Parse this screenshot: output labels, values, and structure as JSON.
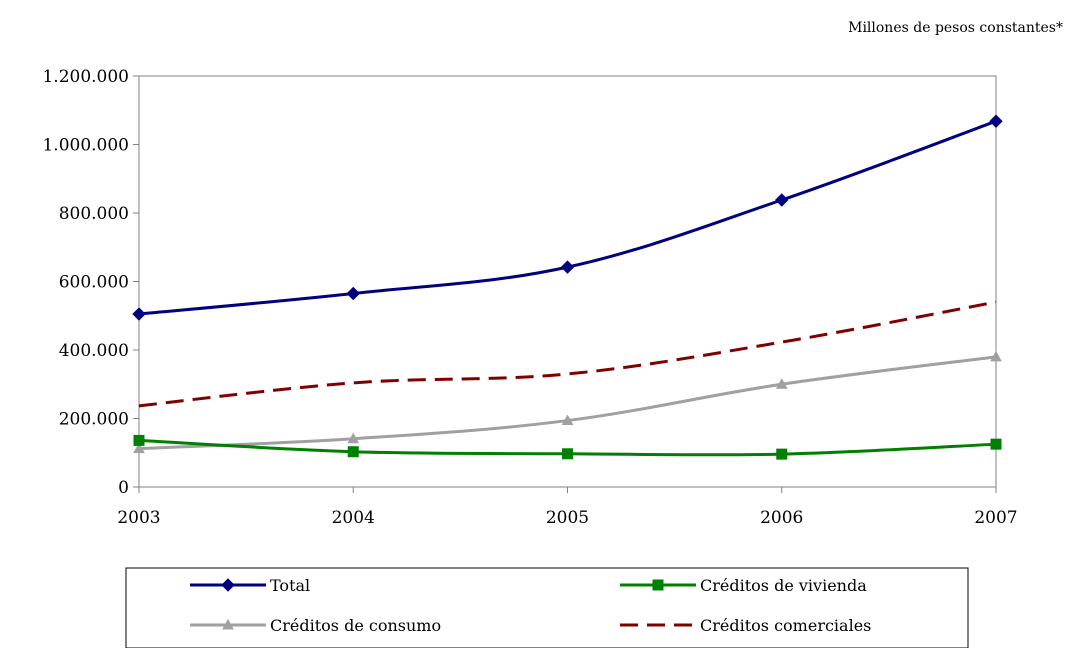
{
  "unit_note": "Millones de pesos constantes*",
  "colors": {
    "total": "#000080",
    "vivienda": "#008000",
    "consumo": "#a0a0a0",
    "comerciales": "#800000",
    "axis": "#808080",
    "plot_border": "#808080",
    "legend_border": "#000000"
  },
  "chart_data": {
    "type": "line",
    "title": "",
    "xlabel": "",
    "ylabel": "",
    "x": [
      "2003",
      "2004",
      "2005",
      "2006",
      "2007"
    ],
    "ylim": [
      0,
      1200000
    ],
    "yticks": [
      {
        "value": 0,
        "label": "0"
      },
      {
        "value": 200000,
        "label": "200.000"
      },
      {
        "value": 400000,
        "label": "400.000"
      },
      {
        "value": 600000,
        "label": "600.000"
      },
      {
        "value": 800000,
        "label": "800.000"
      },
      {
        "value": 1000000,
        "label": "1.000.000"
      },
      {
        "value": 1200000,
        "label": "1.200.000"
      }
    ],
    "grid": false,
    "legend_position": "bottom",
    "series": [
      {
        "name": "Total",
        "color": "#000080",
        "marker": "diamond",
        "dash": "solid",
        "values": [
          505000,
          565000,
          642000,
          838000,
          1068000
        ]
      },
      {
        "name": "Créditos de vivienda",
        "color": "#008000",
        "marker": "square",
        "dash": "solid",
        "values": [
          136000,
          103000,
          97000,
          96000,
          125000
        ]
      },
      {
        "name": "Créditos de consumo",
        "color": "#a0a0a0",
        "marker": "triangle",
        "dash": "solid",
        "values": [
          112000,
          141000,
          194000,
          300000,
          380000
        ]
      },
      {
        "name": "Créditos comerciales",
        "color": "#800000",
        "marker": "none",
        "dash": "dashed",
        "values": [
          237000,
          304000,
          330000,
          423000,
          540000
        ]
      }
    ]
  }
}
